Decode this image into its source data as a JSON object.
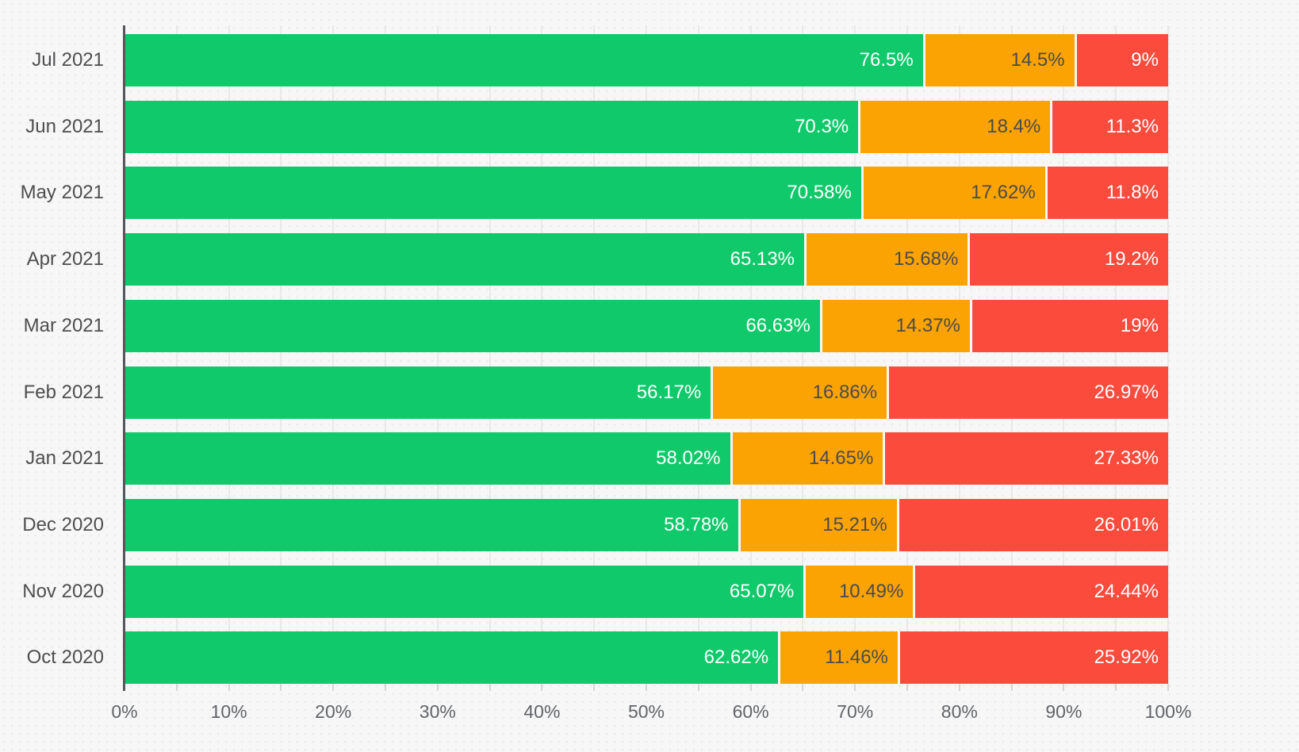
{
  "chart_data": {
    "type": "bar",
    "orientation": "horizontal",
    "stacked": true,
    "unit": "%",
    "categories": [
      "Jul 2021",
      "Jun 2021",
      "May 2021",
      "Apr 2021",
      "Mar 2021",
      "Feb 2021",
      "Jan 2021",
      "Dec 2020",
      "Nov 2020",
      "Oct 2020"
    ],
    "series": [
      {
        "name": "green",
        "color": "#10c96b",
        "label_color": "#ffffff",
        "values": [
          76.5,
          70.3,
          70.58,
          65.13,
          66.63,
          56.17,
          58.02,
          58.78,
          65.07,
          62.62
        ],
        "labels": [
          "76.5%",
          "70.3%",
          "70.58%",
          "65.13%",
          "66.63%",
          "56.17%",
          "58.02%",
          "58.78%",
          "65.07%",
          "62.62%"
        ]
      },
      {
        "name": "orange",
        "color": "#fba302",
        "label_color": "#4b4b4b",
        "values": [
          14.5,
          18.4,
          17.62,
          15.68,
          14.37,
          16.86,
          14.65,
          15.21,
          10.49,
          11.46
        ],
        "labels": [
          "14.5%",
          "18.4%",
          "17.62%",
          "15.68%",
          "14.37%",
          "16.86%",
          "14.65%",
          "15.21%",
          "10.49%",
          "11.46%"
        ]
      },
      {
        "name": "red",
        "color": "#fa4b3d",
        "label_color": "#ffffff",
        "values": [
          9,
          11.3,
          11.8,
          19.2,
          19,
          26.97,
          27.33,
          26.01,
          24.44,
          25.92
        ],
        "labels": [
          "9%",
          "11.3%",
          "11.8%",
          "19.2%",
          "19%",
          "26.97%",
          "27.33%",
          "26.01%",
          "24.44%",
          "25.92%"
        ]
      }
    ],
    "x_axis": {
      "min": 0,
      "max": 100,
      "tick_labels": [
        "0%",
        "10%",
        "20%",
        "30%",
        "40%",
        "50%",
        "60%",
        "70%",
        "80%",
        "90%",
        "100%"
      ],
      "minor_tick_step": 5,
      "grid": true
    }
  },
  "colors": {
    "background": "#f7f7f7",
    "grid": "#e9e9e9",
    "tick": "#d6d6d6",
    "axis_line": "#55575c",
    "category_label": "#4e4e50",
    "axis_label": "#616469"
  }
}
